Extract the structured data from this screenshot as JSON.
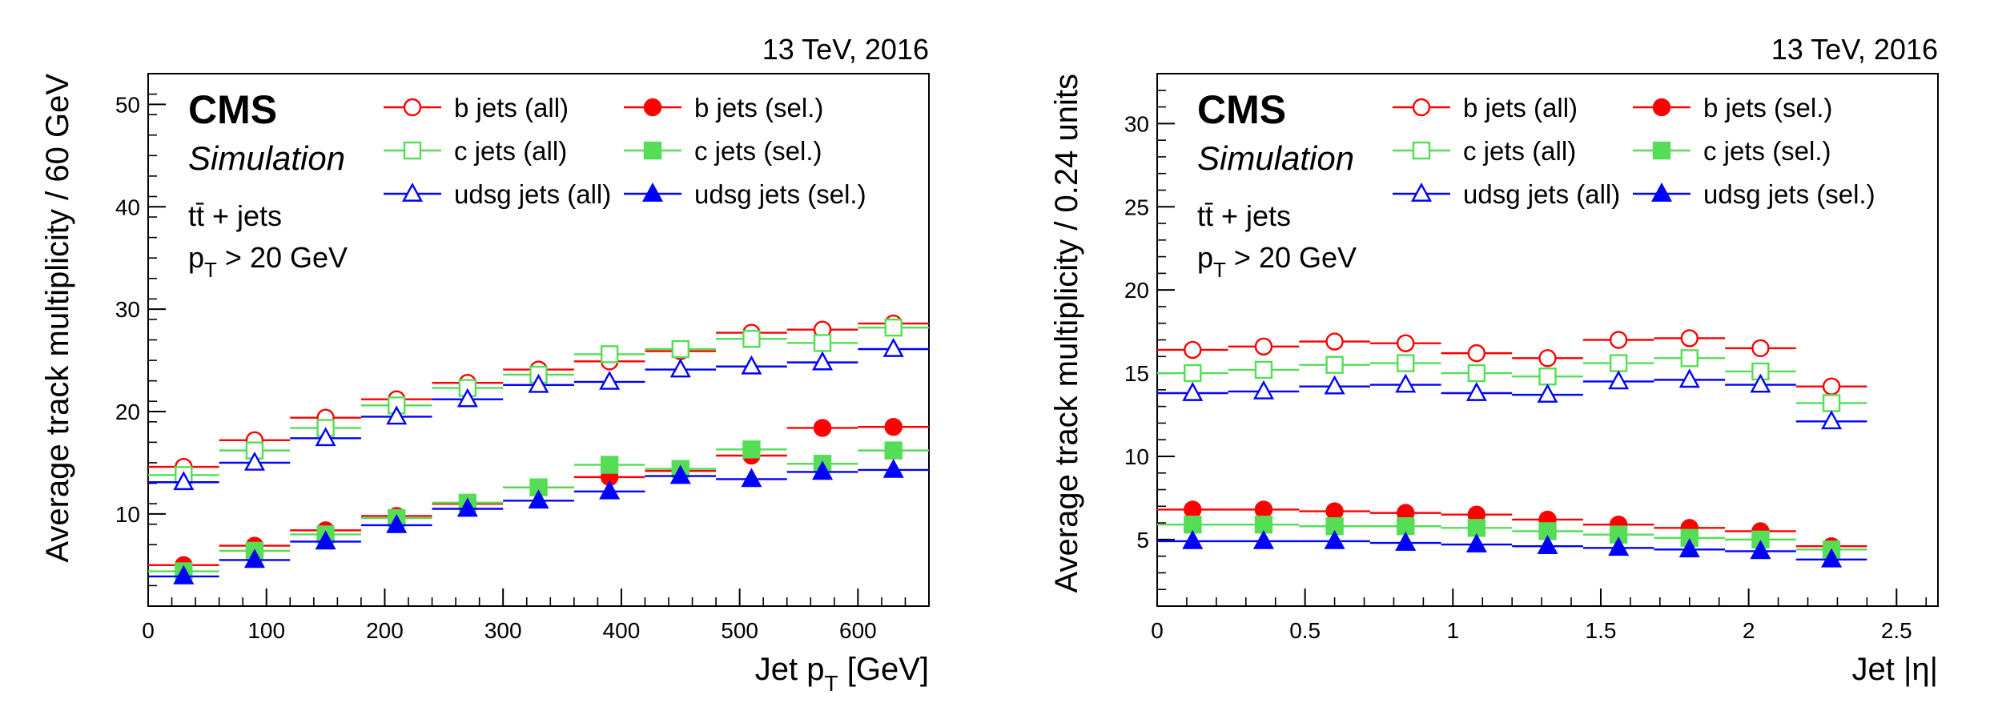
{
  "colors": {
    "b": "#ff0000",
    "c": "#55dd55",
    "udsg": "#0000ff"
  },
  "legend_markers": [
    "open-circle",
    "filled-circle",
    "open-square",
    "filled-square",
    "open-triangle",
    "filled-triangle"
  ],
  "chart_data": [
    {
      "type": "scatter",
      "energy_label": "13 TeV, 2016",
      "cms_label": "CMS",
      "sim_label": "Simulation",
      "process_label": "tt̄ + jets",
      "cut_label": {
        "main": "p",
        "sub": "T",
        "rest": " > 20 GeV"
      },
      "xlabel": {
        "main": "Jet p",
        "sub": "T",
        "rest": " [GeV]"
      },
      "ylabel": "Average track multiplicity / 60 GeV",
      "xlim": [
        0,
        660
      ],
      "ylim": [
        1,
        53
      ],
      "xticks": [
        0,
        100,
        200,
        300,
        400,
        500,
        600
      ],
      "xtick_labels": [
        "0",
        "100",
        "200",
        "300",
        "400",
        "500",
        "600"
      ],
      "yticks": [
        10,
        20,
        30,
        40,
        50
      ],
      "ytick_labels": [
        "10",
        "20",
        "30",
        "40",
        "50"
      ],
      "x_bins": [
        [
          0,
          60
        ],
        [
          60,
          120
        ],
        [
          120,
          180
        ],
        [
          180,
          240
        ],
        [
          240,
          300
        ],
        [
          300,
          360
        ],
        [
          360,
          420
        ],
        [
          420,
          480
        ],
        [
          480,
          540
        ],
        [
          540,
          600
        ],
        [
          600,
          660
        ]
      ],
      "x_centers": [
        30,
        90,
        150,
        210,
        270,
        330,
        390,
        450,
        510,
        570,
        630
      ],
      "legend": [
        "b jets (all)",
        "b jets (sel.)",
        "c jets (all)",
        "c jets (sel.)",
        "udsg jets (all)",
        "udsg jets (sel.)"
      ],
      "series": [
        {
          "name": "b jets (all)",
          "flavour": "b",
          "filled": false,
          "marker": "circle",
          "values": [
            14.6,
            17.2,
            19.4,
            21.2,
            22.8,
            24.1,
            24.9,
            25.9,
            27.7,
            28.0,
            28.6
          ]
        },
        {
          "name": "b jets (sel.)",
          "flavour": "b",
          "filled": true,
          "marker": "circle",
          "values": [
            5.0,
            6.9,
            8.4,
            9.8,
            11.0,
            12.6,
            13.6,
            14.2,
            15.7,
            18.4,
            18.5
          ]
        },
        {
          "name": "c jets (all)",
          "flavour": "c",
          "filled": false,
          "marker": "square",
          "values": [
            13.8,
            16.2,
            18.4,
            20.6,
            22.3,
            23.6,
            25.6,
            26.1,
            27.1,
            26.7,
            28.2
          ]
        },
        {
          "name": "c jets (sel.)",
          "flavour": "c",
          "filled": true,
          "marker": "square",
          "values": [
            4.4,
            6.4,
            8.0,
            9.6,
            11.1,
            12.6,
            14.8,
            14.4,
            16.3,
            14.9,
            16.2
          ]
        },
        {
          "name": "udsg jets (all)",
          "flavour": "udsg",
          "filled": false,
          "marker": "triangle",
          "values": [
            13.1,
            15.0,
            17.4,
            19.5,
            21.2,
            22.6,
            22.9,
            24.1,
            24.4,
            24.8,
            26.1
          ]
        },
        {
          "name": "udsg jets (sel.)",
          "flavour": "udsg",
          "filled": true,
          "marker": "triangle",
          "values": [
            3.9,
            5.5,
            7.3,
            8.9,
            10.5,
            11.3,
            12.2,
            13.7,
            13.4,
            14.1,
            14.3
          ]
        }
      ]
    },
    {
      "type": "scatter",
      "energy_label": "13 TeV, 2016",
      "cms_label": "CMS",
      "sim_label": "Simulation",
      "process_label": "tt̄ + jets",
      "cut_label": {
        "main": "p",
        "sub": "T",
        "rest": " > 20 GeV"
      },
      "xlabel": {
        "main": "Jet |η|",
        "sub": "",
        "rest": ""
      },
      "ylabel": "Average track multiplicity / 0.24 units",
      "xlim": [
        0,
        2.64
      ],
      "ylim": [
        1,
        33
      ],
      "xticks": [
        0,
        0.5,
        1,
        1.5,
        2,
        2.5
      ],
      "xtick_labels": [
        "0",
        "0.5",
        "1",
        "1.5",
        "2",
        "2.5"
      ],
      "yticks": [
        5,
        10,
        15,
        20,
        25,
        30
      ],
      "ytick_labels": [
        "5",
        "10",
        "15",
        "20",
        "25",
        "30"
      ],
      "x_bins": [
        [
          0,
          0.24
        ],
        [
          0.24,
          0.48
        ],
        [
          0.48,
          0.72
        ],
        [
          0.72,
          0.96
        ],
        [
          0.96,
          1.2
        ],
        [
          1.2,
          1.44
        ],
        [
          1.44,
          1.68
        ],
        [
          1.68,
          1.92
        ],
        [
          1.92,
          2.16
        ],
        [
          2.16,
          2.4
        ]
      ],
      "x_centers": [
        0.12,
        0.36,
        0.6,
        0.84,
        1.08,
        1.32,
        1.56,
        1.8,
        2.04,
        2.28
      ],
      "legend": [
        "b jets (all)",
        "b jets (sel.)",
        "c jets (all)",
        "c jets (sel.)",
        "udsg jets (all)",
        "udsg jets (sel.)"
      ],
      "series": [
        {
          "name": "b jets (all)",
          "flavour": "b",
          "filled": false,
          "marker": "circle",
          "values": [
            16.4,
            16.6,
            16.9,
            16.8,
            16.2,
            15.9,
            17.0,
            17.1,
            16.5,
            14.2
          ]
        },
        {
          "name": "b jets (sel.)",
          "flavour": "b",
          "filled": true,
          "marker": "circle",
          "values": [
            6.8,
            6.8,
            6.7,
            6.6,
            6.5,
            6.2,
            5.9,
            5.7,
            5.5,
            4.6
          ]
        },
        {
          "name": "c jets (all)",
          "flavour": "c",
          "filled": false,
          "marker": "square",
          "values": [
            15.0,
            15.2,
            15.5,
            15.6,
            15.0,
            14.8,
            15.6,
            15.9,
            15.1,
            13.2
          ]
        },
        {
          "name": "c jets (sel.)",
          "flavour": "c",
          "filled": true,
          "marker": "square",
          "values": [
            5.9,
            5.9,
            5.8,
            5.8,
            5.7,
            5.5,
            5.3,
            5.1,
            5.0,
            4.4
          ]
        },
        {
          "name": "udsg jets (all)",
          "flavour": "udsg",
          "filled": false,
          "marker": "triangle",
          "values": [
            13.8,
            13.9,
            14.2,
            14.3,
            13.8,
            13.7,
            14.5,
            14.6,
            14.3,
            12.1
          ]
        },
        {
          "name": "udsg jets (sel.)",
          "flavour": "udsg",
          "filled": true,
          "marker": "triangle",
          "values": [
            4.9,
            4.9,
            4.9,
            4.8,
            4.7,
            4.6,
            4.5,
            4.4,
            4.3,
            3.8
          ]
        }
      ]
    }
  ]
}
